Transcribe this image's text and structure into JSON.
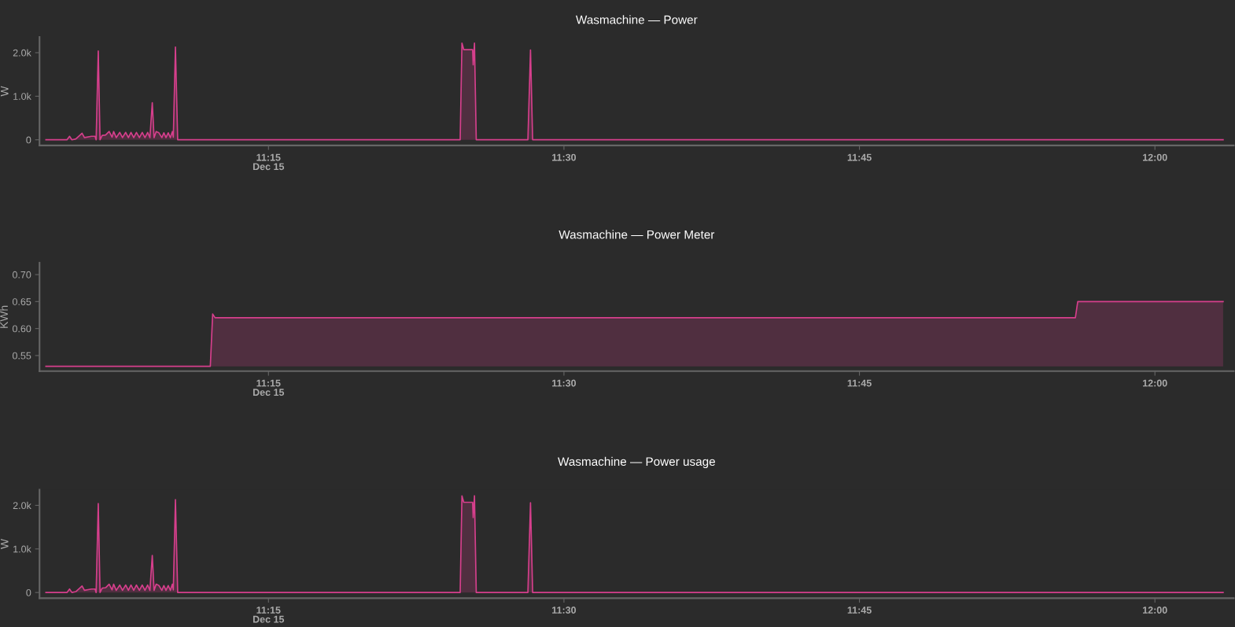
{
  "chart_data": [
    {
      "type": "area",
      "title": "Wasmachine — Power",
      "ylabel": "W",
      "color": "#d63f8c",
      "x": [
        11.0617,
        11.0795,
        11.0817,
        11.0837,
        11.087,
        11.0923,
        11.0943,
        11.1003,
        11.1033,
        11.1042,
        11.106,
        11.1075,
        11.1093,
        11.1122,
        11.1152,
        11.1177,
        11.119,
        11.1212,
        11.1242,
        11.1265,
        11.1292,
        11.1315,
        11.1337,
        11.136,
        11.1383,
        11.1408,
        11.1432,
        11.1455,
        11.1478,
        11.1497,
        11.1517,
        11.1532,
        11.155,
        11.1573,
        11.1598,
        11.1615,
        11.1633,
        11.1652,
        11.167,
        11.1687,
        11.1695,
        11.1713,
        11.1732,
        11.4122,
        11.4137,
        11.4152,
        11.4227,
        11.4232,
        11.4243,
        11.4258,
        11.4695,
        11.4717,
        11.4735,
        12.0577
      ],
      "values": [
        0,
        0,
        80,
        0,
        20,
        150,
        50,
        80,
        80,
        0,
        2040,
        0,
        100,
        110,
        190,
        60,
        190,
        50,
        170,
        50,
        170,
        50,
        170,
        50,
        170,
        50,
        170,
        50,
        170,
        50,
        850,
        50,
        190,
        160,
        50,
        160,
        50,
        160,
        50,
        190,
        60,
        2130,
        0,
        0,
        2220,
        2070,
        2070,
        1720,
        2220,
        0,
        0,
        2060,
        0,
        0
      ],
      "xlim": [
        11.0563,
        12.0667
      ],
      "xticks": [
        {
          "value": 11.25,
          "label": "11:15\nDec 15"
        },
        {
          "value": 11.5,
          "label": "11:30"
        },
        {
          "value": 11.75,
          "label": "11:45"
        },
        {
          "value": 12.0,
          "label": "12:00"
        }
      ],
      "ylim": [
        -130,
        2360
      ],
      "yticks": [
        {
          "value": 0,
          "label": "0"
        },
        {
          "value": 1000,
          "label": "1.0k"
        },
        {
          "value": 2000,
          "label": "2.0k"
        }
      ],
      "grid": false,
      "legend": false
    },
    {
      "type": "area",
      "title": "Wasmachine — Power Meter",
      "ylabel": "KWh",
      "color": "#d63f8c",
      "x": [
        11.0617,
        11.2008,
        11.2028,
        11.2048,
        11.9327,
        11.9347,
        12.0577
      ],
      "values": [
        0.53,
        0.53,
        0.627,
        0.62,
        0.62,
        0.65,
        0.65
      ],
      "xlim": [
        11.0563,
        12.0667
      ],
      "xticks": [
        {
          "value": 11.25,
          "label": "11:15\nDec 15"
        },
        {
          "value": 11.5,
          "label": "11:30"
        },
        {
          "value": 11.75,
          "label": "11:45"
        },
        {
          "value": 12.0,
          "label": "12:00"
        }
      ],
      "ylim": [
        0.521,
        0.722
      ],
      "yticks": [
        {
          "value": 0.55,
          "label": "0.55"
        },
        {
          "value": 0.6,
          "label": "0.60"
        },
        {
          "value": 0.65,
          "label": "0.65"
        },
        {
          "value": 0.7,
          "label": "0.70"
        }
      ],
      "grid": false,
      "legend": false
    },
    {
      "type": "area",
      "title": "Wasmachine — Power usage",
      "ylabel": "W",
      "color": "#d63f8c",
      "x": [
        11.0617,
        11.0795,
        11.0817,
        11.0837,
        11.087,
        11.0923,
        11.0943,
        11.1003,
        11.1033,
        11.1042,
        11.106,
        11.1075,
        11.1093,
        11.1122,
        11.1152,
        11.1177,
        11.119,
        11.1212,
        11.1242,
        11.1265,
        11.1292,
        11.1315,
        11.1337,
        11.136,
        11.1383,
        11.1408,
        11.1432,
        11.1455,
        11.1478,
        11.1497,
        11.1517,
        11.1532,
        11.155,
        11.1573,
        11.1598,
        11.1615,
        11.1633,
        11.1652,
        11.167,
        11.1687,
        11.1695,
        11.1713,
        11.1732,
        11.4122,
        11.4137,
        11.4152,
        11.4227,
        11.4232,
        11.4243,
        11.4258,
        11.4695,
        11.4717,
        11.4735,
        12.0577
      ],
      "values": [
        0,
        0,
        80,
        0,
        20,
        150,
        50,
        80,
        80,
        0,
        2040,
        0,
        100,
        110,
        190,
        60,
        190,
        50,
        170,
        50,
        170,
        50,
        170,
        50,
        170,
        50,
        170,
        50,
        170,
        50,
        850,
        50,
        190,
        160,
        50,
        160,
        50,
        160,
        50,
        190,
        60,
        2130,
        0,
        0,
        2220,
        2070,
        2070,
        1720,
        2220,
        0,
        0,
        2060,
        0,
        0
      ],
      "xlim": [
        11.0563,
        12.0667
      ],
      "xticks": [
        {
          "value": 11.25,
          "label": "11:15\nDec 15"
        },
        {
          "value": 11.5,
          "label": "11:30"
        },
        {
          "value": 11.75,
          "label": "11:45"
        },
        {
          "value": 12.0,
          "label": "12:00"
        }
      ],
      "ylim": [
        -130,
        2360
      ],
      "yticks": [
        {
          "value": 0,
          "label": "0"
        },
        {
          "value": 1000,
          "label": "1.0k"
        },
        {
          "value": 2000,
          "label": "2.0k"
        }
      ],
      "grid": false,
      "legend": false
    }
  ]
}
